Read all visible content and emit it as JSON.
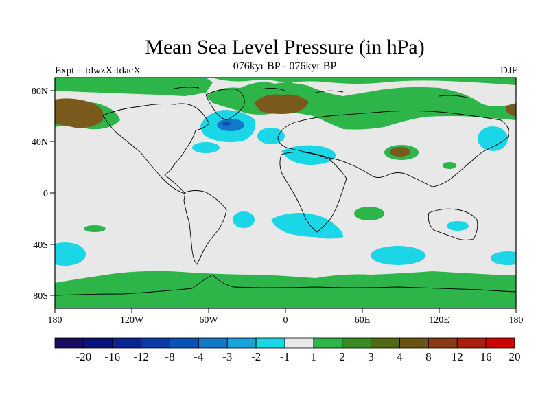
{
  "header": {
    "title": "Mean Sea Level Pressure (in hPa)",
    "subtitle": "076kyr BP - 076kyr BP",
    "left_label": "Expt = tdwzX-tdacX",
    "right_label": "DJF"
  },
  "axes": {
    "x_ticks": [
      "180",
      "120W",
      "60W",
      "0",
      "60E",
      "120E",
      "180"
    ],
    "y_ticks": [
      "80N",
      "40N",
      "0",
      "40S",
      "80S"
    ]
  },
  "colorbar": {
    "labels": [
      "-20",
      "-16",
      "-12",
      "-8",
      "-4",
      "-3",
      "-2",
      "-1",
      "1",
      "2",
      "3",
      "4",
      "8",
      "12",
      "16",
      "20"
    ],
    "colors": [
      "#1a0a5e",
      "#0b1278",
      "#0a2590",
      "#0a3aa6",
      "#0a52b8",
      "#1478c8",
      "#19a3d6",
      "#1ad6e6",
      "#e8e8e8",
      "#2db54a",
      "#3a8a24",
      "#4f6a12",
      "#6b5410",
      "#8a3a12",
      "#a8200c",
      "#d00000"
    ]
  },
  "map": {
    "background_color": "#e8e8e8",
    "land_outline_color": "#000000"
  }
}
